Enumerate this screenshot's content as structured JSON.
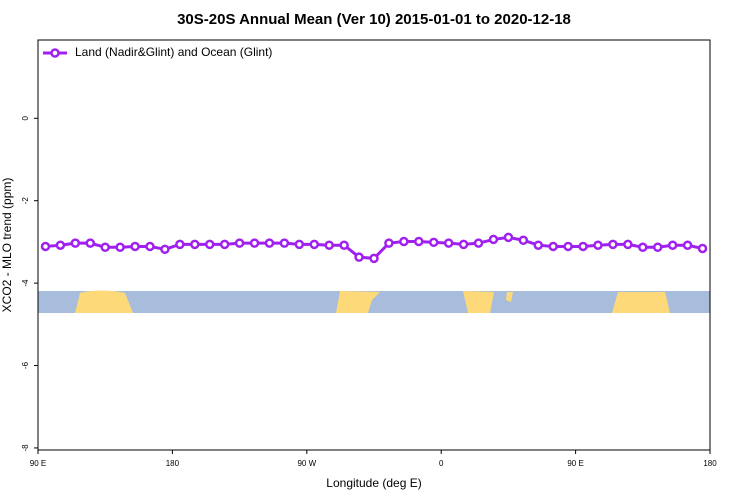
{
  "chart_data": {
    "type": "line",
    "title": "30S-20S Annual Mean (Ver 10)   2015-01-01 to 2020-12-18",
    "x_label": "Longitude (deg E)",
    "y_label": "XCO2 - MLO trend (ppm)",
    "xlim": [
      90,
      540
    ],
    "ylim": [
      -8.05,
      1.9
    ],
    "xticks": [
      {
        "value": 90,
        "label": "90 E"
      },
      180,
      {
        "value": 270,
        "label": "90 W"
      },
      {
        "value": 360,
        "label": "0"
      },
      {
        "value": 450,
        "label": "90 E"
      },
      {
        "value": 540,
        "label": "180"
      }
    ],
    "yticks": [
      0,
      -2,
      -4,
      -6,
      -8
    ],
    "legend": "upper left",
    "grid": false,
    "x": [
      95,
      105,
      115,
      125,
      135,
      145,
      155,
      165,
      175,
      185,
      195,
      205,
      215,
      225,
      235,
      245,
      255,
      265,
      275,
      285,
      295,
      305,
      315,
      325,
      335,
      345,
      355,
      365,
      375,
      385,
      395,
      405,
      415,
      425,
      435,
      445,
      455,
      465,
      475,
      485,
      495,
      505,
      515,
      525,
      535
    ],
    "series": [
      {
        "name": "Land (Nadir&Glint) and Ocean (Glint)",
        "color": "#a020f0",
        "values": [
          -3.11,
          -3.08,
          -3.03,
          -3.03,
          -3.13,
          -3.13,
          -3.11,
          -3.11,
          -3.18,
          -3.06,
          -3.06,
          -3.06,
          -3.06,
          -3.03,
          -3.03,
          -3.03,
          -3.03,
          -3.06,
          -3.06,
          -3.08,
          -3.08,
          -3.37,
          -3.4,
          -3.03,
          -2.99,
          -2.99,
          -3.01,
          -3.03,
          -3.06,
          -3.03,
          -2.94,
          -2.89,
          -2.96,
          -3.08,
          -3.11,
          -3.11,
          -3.11,
          -3.08,
          -3.06,
          -3.06,
          -3.13,
          -3.13,
          -3.08,
          -3.08,
          -3.16
        ]
      }
    ]
  }
}
